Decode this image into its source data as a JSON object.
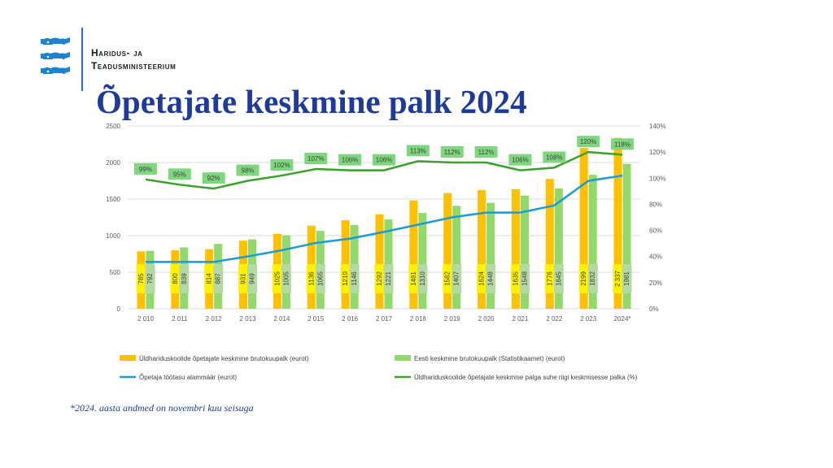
{
  "org": {
    "line1": "Haridus- ja",
    "line2": "Teadusministeerium"
  },
  "title": "Õpetajate keskmine palk 2024",
  "footnote": "*2024. aasta andmed on novembri kuu seisuga",
  "logo_icon": "three-lions-coat-of-arms-icon",
  "colors": {
    "orange": "#ffc000",
    "lightgreen": "#92d86c",
    "blue": "#1e9ad6",
    "green": "#3aa02a",
    "label_yellow": "#fff200",
    "title_blue": "#1f3b97"
  },
  "chart_data": {
    "type": "bar",
    "categories": [
      "2 010",
      "2 011",
      "2 012",
      "2 013",
      "2 014",
      "2 015",
      "2 016",
      "2 017",
      "2 018",
      "2 019",
      "2 020",
      "2 021",
      "2 022",
      "2 023",
      "2024*"
    ],
    "y_left": {
      "ylim": [
        0,
        2500
      ],
      "ticks": [
        "0",
        "500",
        "1000",
        "1500",
        "2000",
        "2500"
      ]
    },
    "y_right": {
      "ylim": [
        0,
        140
      ],
      "ticks": [
        "0%",
        "20%",
        "40%",
        "60%",
        "80%",
        "100%",
        "120%",
        "140%"
      ]
    },
    "series": [
      {
        "name": "Üldhariduskoolide õpetajate keskmine brutokuupalk (eurot)",
        "type": "bar",
        "color": "#ffc000",
        "values": [
          785,
          800,
          814,
          931,
          1025,
          1136,
          1210,
          1292,
          1481,
          1582,
          1624,
          1635,
          1776,
          2199,
          2337
        ],
        "labels": [
          "785",
          "800",
          "814",
          "931",
          "1025",
          "1136",
          "1210",
          "1292",
          "1481",
          "1582",
          "1624",
          "1635",
          "1776",
          "2199",
          "2 337"
        ]
      },
      {
        "name": "Eesti keskmine brutokuupalk (Statistikaamet) (eurot)",
        "type": "bar",
        "color": "#92d86c",
        "values": [
          792,
          839,
          887,
          949,
          1005,
          1065,
          1146,
          1221,
          1310,
          1407,
          1448,
          1548,
          1645,
          1832,
          1981
        ],
        "labels": [
          "792",
          "839",
          "887",
          "949",
          "1005",
          "1065",
          "1146",
          "1221",
          "1310",
          "1407",
          "1448",
          "1548",
          "1645",
          "1832",
          "1981"
        ]
      },
      {
        "name": "Õpetaja töötasu alammäär (eurot)",
        "type": "line",
        "color": "#1e9ad6",
        "values": [
          640,
          640,
          640,
          715,
          800,
          900,
          958,
          1050,
          1150,
          1250,
          1315,
          1315,
          1412,
          1749,
          1820
        ]
      },
      {
        "name": "Üldhariduskoolide õpetajate keskmise palga suhe riigi keskmisesse palka (%)",
        "type": "line",
        "axis": "right",
        "color": "#3aa02a",
        "values": [
          99,
          95,
          92,
          98,
          102,
          107,
          106,
          106,
          113,
          112,
          112,
          106,
          108,
          120,
          118
        ],
        "labels": [
          "99%",
          "95%",
          "92%",
          "98%",
          "102%",
          "107%",
          "106%",
          "106%",
          "113%",
          "112%",
          "112%",
          "106%",
          "108%",
          "120%",
          "118%"
        ]
      }
    ],
    "legend": "bottom",
    "grid": true
  }
}
